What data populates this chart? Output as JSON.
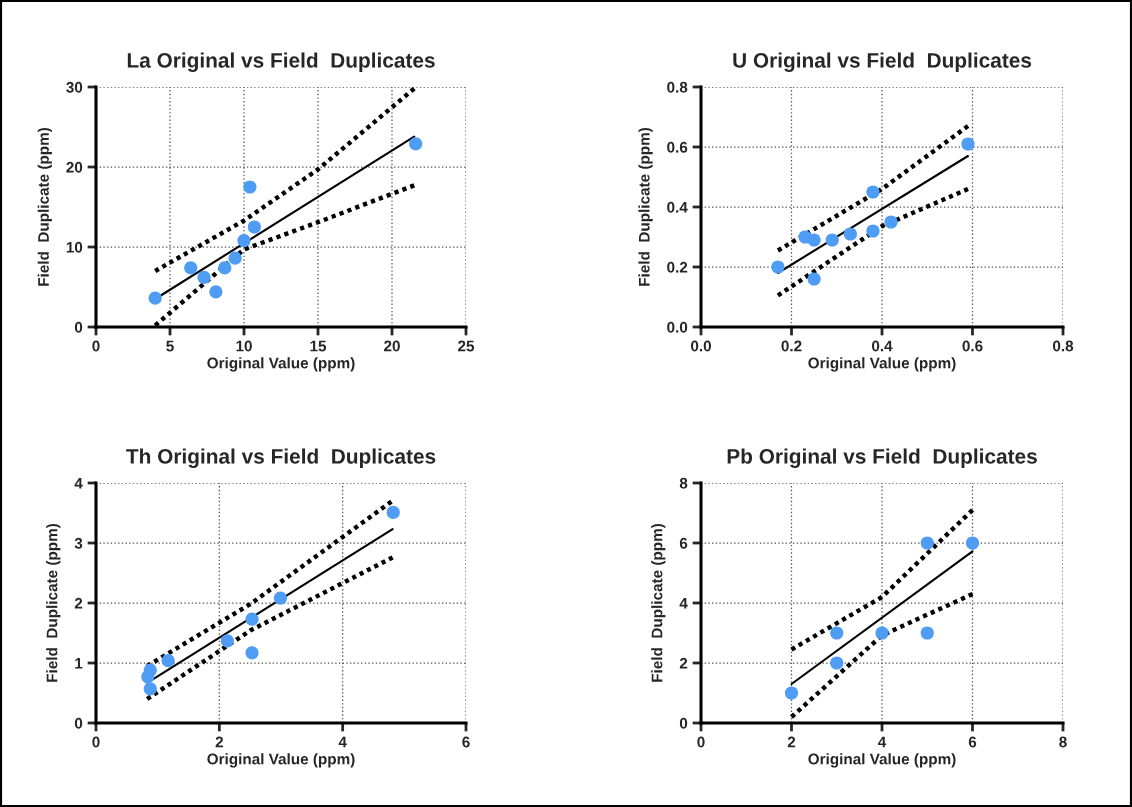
{
  "chart_data": [
    {
      "type": "scatter",
      "title": "La Original vs Field  Duplicates",
      "xlabel": "Original Value (ppm)",
      "ylabel": "Field  Duplicate (ppm)",
      "xlim": [
        0,
        25
      ],
      "ylim": [
        0,
        30
      ],
      "xticks": [
        0,
        5,
        10,
        15,
        20,
        25
      ],
      "yticks": [
        0,
        10,
        20,
        30
      ],
      "grid": true,
      "series": [
        {
          "marker": "circle",
          "color": "#4f9cf5",
          "x": [
            4,
            6.4,
            7.3,
            8.1,
            8.7,
            9.4,
            10,
            10.4,
            10.7,
            21.6
          ],
          "values": [
            3.6,
            7.4,
            6.2,
            4.4,
            7.4,
            8.6,
            10.8,
            17.5,
            12.5,
            22.9
          ]
        },
        {
          "type": "line",
          "color": "#000000",
          "line_style": "solid",
          "x": [
            4,
            21.5
          ],
          "values": [
            3.5,
            23.8
          ]
        },
        {
          "type": "line",
          "color": "#000000",
          "line_style": "dotted",
          "x": [
            4,
            10,
            15,
            21.5
          ],
          "values": [
            7.0,
            13.3,
            19.7,
            29.8
          ]
        },
        {
          "type": "line",
          "color": "#000000",
          "line_style": "dotted",
          "x": [
            4,
            10,
            15,
            21.5
          ],
          "values": [
            0.2,
            9.7,
            13.1,
            17.7
          ]
        }
      ]
    },
    {
      "type": "scatter",
      "title": "U Original vs Field  Duplicates",
      "xlabel": "Original Value (ppm)",
      "ylabel": "Field  Duplicate (ppm)",
      "xlim": [
        0,
        0.8
      ],
      "ylim": [
        0,
        0.8
      ],
      "xticks": [
        {
          "value": 0,
          "label": "0.0"
        },
        0.2,
        0.4,
        0.6,
        0.8
      ],
      "yticks": [
        {
          "value": 0,
          "label": "0.0"
        },
        0.2,
        0.4,
        0.6,
        0.8
      ],
      "grid": true,
      "series": [
        {
          "marker": "circle",
          "color": "#4f9cf5",
          "x": [
            0.17,
            0.23,
            0.25,
            0.25,
            0.29,
            0.33,
            0.38,
            0.38,
            0.42,
            0.59
          ],
          "values": [
            0.2,
            0.3,
            0.29,
            0.16,
            0.29,
            0.31,
            0.45,
            0.32,
            0.35,
            0.61
          ]
        },
        {
          "type": "line",
          "color": "#000000",
          "line_style": "solid",
          "x": [
            0.17,
            0.59
          ],
          "values": [
            0.18,
            0.57
          ]
        },
        {
          "type": "line",
          "color": "#000000",
          "line_style": "dotted",
          "x": [
            0.17,
            0.4,
            0.59
          ],
          "values": [
            0.255,
            0.46,
            0.67
          ]
        },
        {
          "type": "line",
          "color": "#000000",
          "line_style": "dotted",
          "x": [
            0.17,
            0.4,
            0.59
          ],
          "values": [
            0.105,
            0.336,
            0.46
          ]
        }
      ]
    },
    {
      "type": "scatter",
      "title": "Th Original vs Field  Duplicates",
      "xlabel": "Original Value (ppm)",
      "ylabel": "Field  Duplicate (ppm)",
      "xlim": [
        0,
        6
      ],
      "ylim": [
        0,
        4
      ],
      "xticks": [
        0,
        2,
        4,
        6
      ],
      "yticks": [
        0,
        1,
        2,
        3,
        4
      ],
      "grid": true,
      "series": [
        {
          "marker": "circle",
          "color": "#4f9cf5",
          "x": [
            0.84,
            0.88,
            0.88,
            1.17,
            2.13,
            2.53,
            2.53,
            2.99,
            4.82
          ],
          "values": [
            0.77,
            0.88,
            0.57,
            1.04,
            1.37,
            1.73,
            1.17,
            2.08,
            3.51
          ]
        },
        {
          "type": "line",
          "color": "#000000",
          "line_style": "solid",
          "x": [
            0.83,
            4.81
          ],
          "values": [
            0.67,
            3.23
          ]
        },
        {
          "type": "line",
          "color": "#000000",
          "line_style": "dotted",
          "x": [
            0.83,
            2.5,
            4.79
          ],
          "values": [
            0.95,
            1.98,
            3.69
          ]
        },
        {
          "type": "line",
          "color": "#000000",
          "line_style": "dotted",
          "x": [
            0.83,
            2.5,
            4.81
          ],
          "values": [
            0.4,
            1.54,
            2.76
          ]
        }
      ]
    },
    {
      "type": "scatter",
      "title": "Pb Original vs Field  Duplicates",
      "xlabel": "Original Value (ppm)",
      "ylabel": "Field  Duplicate (ppm)",
      "xlim": [
        0,
        8
      ],
      "ylim": [
        0,
        8
      ],
      "xticks": [
        0,
        2,
        4,
        6,
        8
      ],
      "yticks": [
        0,
        2,
        4,
        6,
        8
      ],
      "grid": true,
      "series": [
        {
          "marker": "circle",
          "color": "#4f9cf5",
          "x": [
            2,
            3,
            3,
            4,
            5,
            5,
            6
          ],
          "values": [
            1,
            3,
            2,
            3,
            6,
            3,
            6
          ]
        },
        {
          "type": "line",
          "color": "#000000",
          "line_style": "solid",
          "x": [
            2,
            6
          ],
          "values": [
            1.3,
            5.72
          ]
        },
        {
          "type": "line",
          "color": "#000000",
          "line_style": "dotted",
          "x": [
            2,
            4,
            6
          ],
          "values": [
            2.45,
            4.2,
            7.1
          ]
        },
        {
          "type": "line",
          "color": "#000000",
          "line_style": "dotted",
          "x": [
            2,
            4,
            6
          ],
          "values": [
            0.2,
            2.92,
            4.3
          ]
        }
      ]
    }
  ]
}
